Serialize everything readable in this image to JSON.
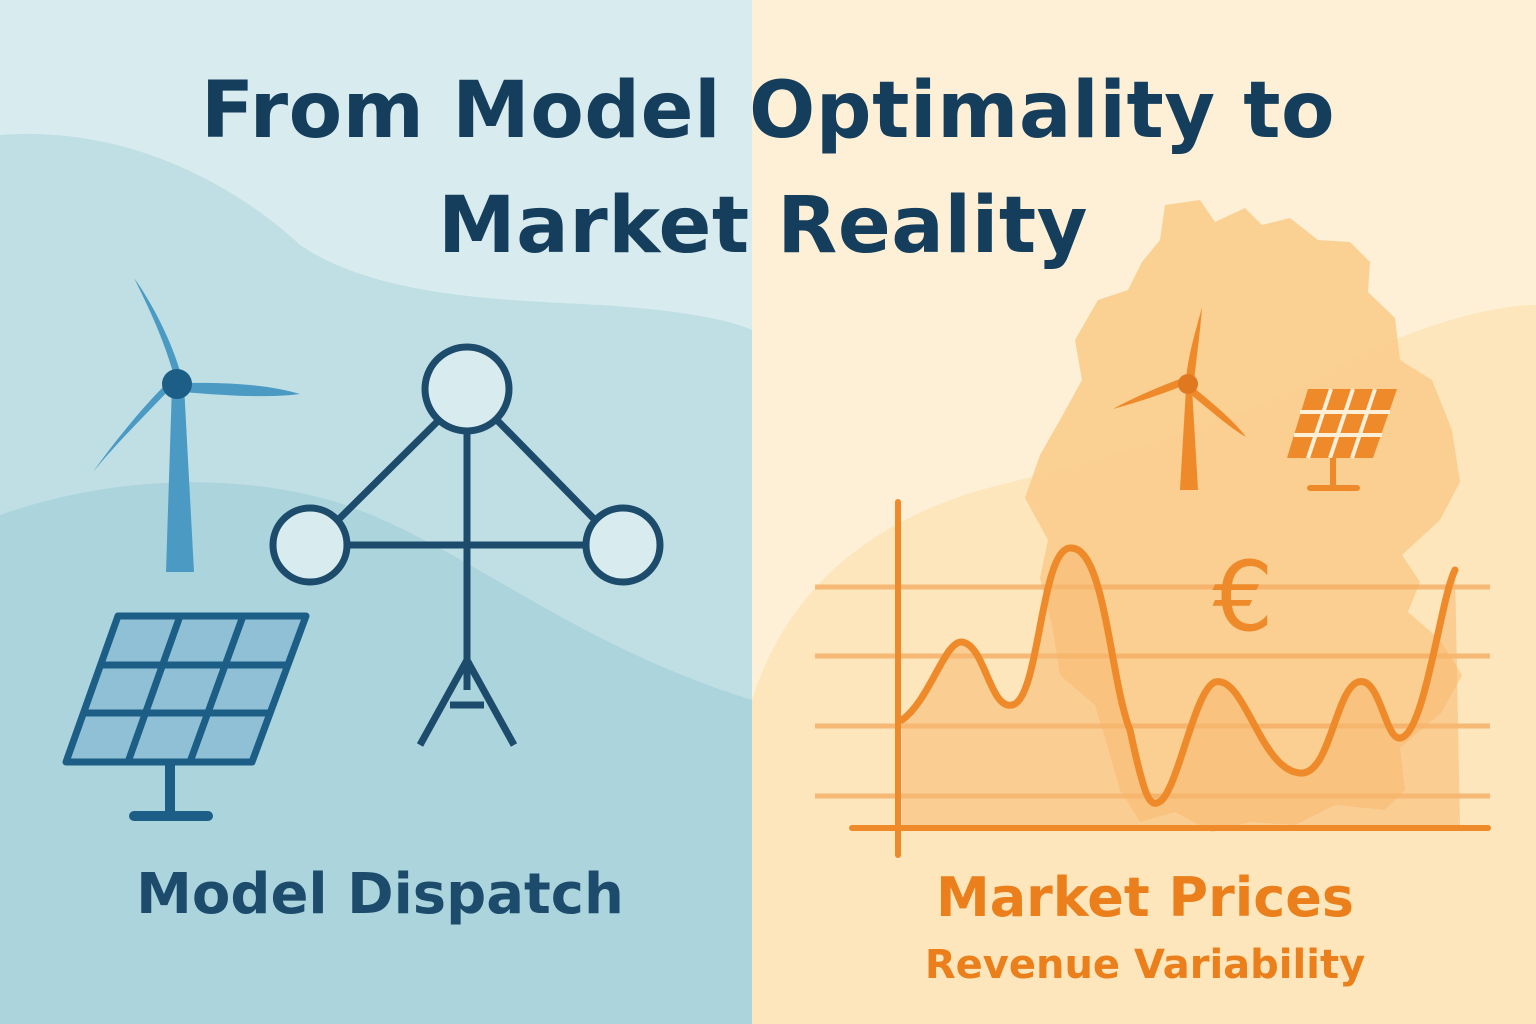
{
  "title": {
    "line1": "From Model Optimality to",
    "line2": "Market Reality"
  },
  "left_panel": {
    "caption": "Model Dispatch",
    "icons": [
      "wind-turbine-icon",
      "solar-panel-icon",
      "power-network-icon"
    ]
  },
  "right_panel": {
    "caption": "Market Prices",
    "subcaption": "Revenue Variability",
    "currency_symbol": "€",
    "icons": [
      "wind-turbine-icon",
      "solar-panel-icon",
      "germany-map-icon",
      "price-chart-icon"
    ]
  },
  "colors": {
    "title": "#153e5c",
    "left_background": "#cfe6ea",
    "left_hill": "#a9d3dd",
    "left_icon_light": "#4b9ac4",
    "left_icon_dark": "#1c5e86",
    "network": "#1d4b6b",
    "right_background": "#fdefd3",
    "right_accent": "#ef8a2a",
    "right_caption": "#ea7f1b",
    "map": "#f8c987"
  }
}
